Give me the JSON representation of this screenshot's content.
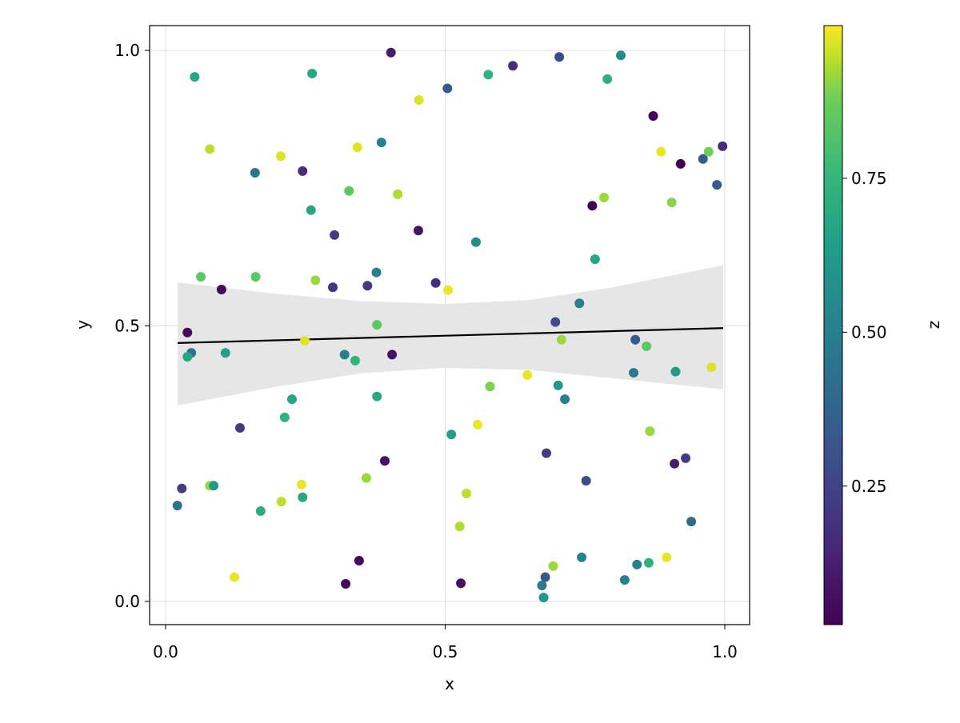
{
  "chart_data": {
    "type": "scatter",
    "title": "",
    "xlabel": "x",
    "ylabel": "y",
    "colorbar_label": "z",
    "xlim": [
      -0.027,
      1.045
    ],
    "ylim": [
      -0.042,
      1.045
    ],
    "xticks": [
      0.0,
      0.5,
      1.0
    ],
    "xtick_labels": [
      "0.0",
      "0.5",
      "1.0"
    ],
    "yticks": [
      0.0,
      0.5,
      1.0
    ],
    "ytick_labels": [
      "0.0",
      "0.5",
      "1.0"
    ],
    "colorbar_range": [
      0.025,
      0.998
    ],
    "colorbar_ticks": [
      0.25,
      0.5,
      0.75
    ],
    "colorbar_tick_labels": [
      "0.25",
      "0.50",
      "0.75"
    ],
    "colormap": "viridis",
    "grid": true,
    "regression_line": {
      "x": [
        0.0215,
        0.997
      ],
      "y": [
        0.469,
        0.496
      ],
      "color": "#000000"
    },
    "confidence_band": {
      "x": [
        0.0215,
        0.2,
        0.35,
        0.5,
        0.65,
        0.8,
        0.997
      ],
      "upper": [
        0.579,
        0.558,
        0.545,
        0.54,
        0.547,
        0.57,
        0.61
      ],
      "lower": [
        0.356,
        0.39,
        0.414,
        0.424,
        0.42,
        0.405,
        0.385
      ],
      "color": "#e6e6e6"
    },
    "points": [
      [
        0.403,
        0.996,
        0.1
      ],
      [
        0.052,
        0.952,
        0.6
      ],
      [
        0.262,
        0.958,
        0.6
      ],
      [
        0.504,
        0.931,
        0.3
      ],
      [
        0.453,
        0.91,
        0.95
      ],
      [
        0.577,
        0.956,
        0.65
      ],
      [
        0.621,
        0.972,
        0.15
      ],
      [
        0.704,
        0.988,
        0.25
      ],
      [
        0.814,
        0.991,
        0.5
      ],
      [
        0.79,
        0.948,
        0.65
      ],
      [
        0.872,
        0.881,
        0.03
      ],
      [
        0.079,
        0.821,
        0.9
      ],
      [
        0.206,
        0.808,
        0.95
      ],
      [
        0.343,
        0.824,
        0.95
      ],
      [
        0.386,
        0.833,
        0.45
      ],
      [
        0.16,
        0.778,
        0.4
      ],
      [
        0.245,
        0.781,
        0.15
      ],
      [
        0.328,
        0.745,
        0.75
      ],
      [
        0.415,
        0.739,
        0.88
      ],
      [
        0.26,
        0.71,
        0.6
      ],
      [
        0.302,
        0.665,
        0.2
      ],
      [
        0.452,
        0.673,
        0.08
      ],
      [
        0.555,
        0.652,
        0.5
      ],
      [
        0.886,
        0.816,
        0.97
      ],
      [
        0.921,
        0.794,
        0.03
      ],
      [
        0.961,
        0.803,
        0.3
      ],
      [
        0.971,
        0.816,
        0.78
      ],
      [
        0.996,
        0.826,
        0.15
      ],
      [
        0.986,
        0.756,
        0.3
      ],
      [
        0.784,
        0.733,
        0.85
      ],
      [
        0.763,
        0.718,
        0.03
      ],
      [
        0.905,
        0.724,
        0.82
      ],
      [
        0.768,
        0.621,
        0.6
      ],
      [
        0.063,
        0.589,
        0.75
      ],
      [
        0.1,
        0.566,
        0.05
      ],
      [
        0.161,
        0.589,
        0.75
      ],
      [
        0.268,
        0.583,
        0.85
      ],
      [
        0.299,
        0.57,
        0.18
      ],
      [
        0.361,
        0.573,
        0.2
      ],
      [
        0.377,
        0.597,
        0.45
      ],
      [
        0.483,
        0.578,
        0.15
      ],
      [
        0.505,
        0.565,
        0.97
      ],
      [
        0.74,
        0.541,
        0.45
      ],
      [
        0.697,
        0.507,
        0.25
      ],
      [
        0.039,
        0.488,
        0.05
      ],
      [
        0.046,
        0.451,
        0.4
      ],
      [
        0.039,
        0.444,
        0.6
      ],
      [
        0.107,
        0.451,
        0.58
      ],
      [
        0.378,
        0.502,
        0.75
      ],
      [
        0.249,
        0.473,
        0.95
      ],
      [
        0.32,
        0.448,
        0.45
      ],
      [
        0.339,
        0.437,
        0.65
      ],
      [
        0.405,
        0.448,
        0.07
      ],
      [
        0.708,
        0.475,
        0.85
      ],
      [
        0.84,
        0.475,
        0.3
      ],
      [
        0.86,
        0.463,
        0.75
      ],
      [
        0.837,
        0.415,
        0.42
      ],
      [
        0.912,
        0.417,
        0.55
      ],
      [
        0.976,
        0.425,
        0.95
      ],
      [
        0.647,
        0.411,
        0.97
      ],
      [
        0.58,
        0.39,
        0.8
      ],
      [
        0.702,
        0.392,
        0.55
      ],
      [
        0.714,
        0.367,
        0.45
      ],
      [
        0.378,
        0.372,
        0.6
      ],
      [
        0.226,
        0.367,
        0.6
      ],
      [
        0.213,
        0.334,
        0.65
      ],
      [
        0.133,
        0.315,
        0.2
      ],
      [
        0.511,
        0.303,
        0.58
      ],
      [
        0.558,
        0.321,
        0.97
      ],
      [
        0.866,
        0.309,
        0.85
      ],
      [
        0.681,
        0.269,
        0.2
      ],
      [
        0.392,
        0.255,
        0.07
      ],
      [
        0.91,
        0.25,
        0.1
      ],
      [
        0.93,
        0.26,
        0.2
      ],
      [
        0.752,
        0.219,
        0.25
      ],
      [
        0.029,
        0.205,
        0.2
      ],
      [
        0.079,
        0.21,
        0.85
      ],
      [
        0.086,
        0.21,
        0.55
      ],
      [
        0.021,
        0.174,
        0.4
      ],
      [
        0.243,
        0.212,
        0.97
      ],
      [
        0.359,
        0.224,
        0.85
      ],
      [
        0.245,
        0.189,
        0.6
      ],
      [
        0.207,
        0.181,
        0.9
      ],
      [
        0.17,
        0.164,
        0.62
      ],
      [
        0.538,
        0.196,
        0.9
      ],
      [
        0.526,
        0.136,
        0.88
      ],
      [
        0.94,
        0.145,
        0.35
      ],
      [
        0.123,
        0.044,
        0.97
      ],
      [
        0.346,
        0.074,
        0.05
      ],
      [
        0.322,
        0.032,
        0.05
      ],
      [
        0.528,
        0.033,
        0.07
      ],
      [
        0.693,
        0.064,
        0.85
      ],
      [
        0.679,
        0.044,
        0.3
      ],
      [
        0.673,
        0.029,
        0.42
      ],
      [
        0.676,
        0.007,
        0.55
      ],
      [
        0.744,
        0.08,
        0.45
      ],
      [
        0.821,
        0.039,
        0.45
      ],
      [
        0.843,
        0.067,
        0.45
      ],
      [
        0.864,
        0.07,
        0.65
      ],
      [
        0.896,
        0.08,
        0.97
      ]
    ]
  }
}
